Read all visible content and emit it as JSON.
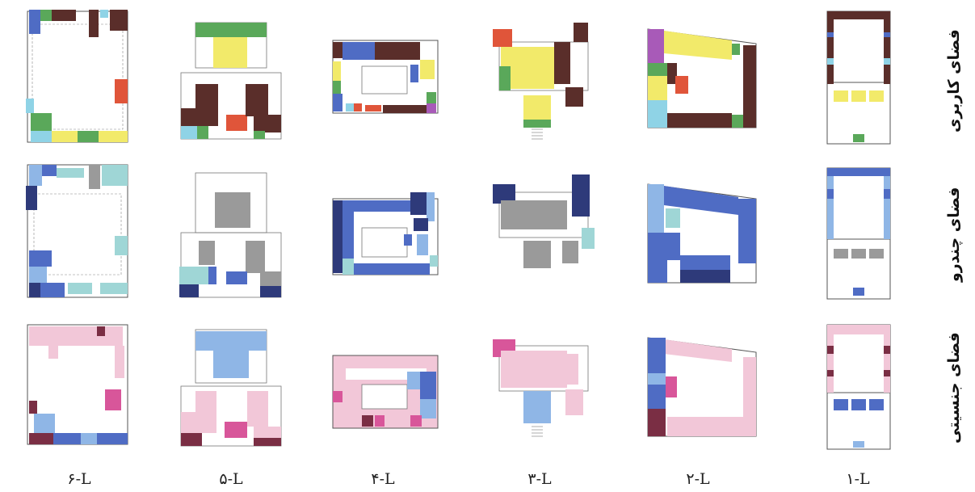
{
  "columns": [
    "۶-L",
    "۵-L",
    "۴-L",
    "۳-L",
    "۲-L",
    "۱-L"
  ],
  "rows": [
    "فضای کاربری",
    "فضای چندرو",
    "فضای جنسیتی"
  ],
  "colors": {
    "brown": "#5a2e2a",
    "navy": "#2e3a7a",
    "blue": "#4f6cc4",
    "lightblue": "#8fb6e6",
    "cyan": "#8fd3e6",
    "teal": "#9fd6d6",
    "gray": "#9a9a9a",
    "green": "#5aa85a",
    "yellow": "#f2ea6a",
    "red": "#e0553a",
    "purple": "#a85ab8",
    "pink": "#f2c7d8",
    "magenta": "#d8569a",
    "maroon": "#7a2e44"
  }
}
